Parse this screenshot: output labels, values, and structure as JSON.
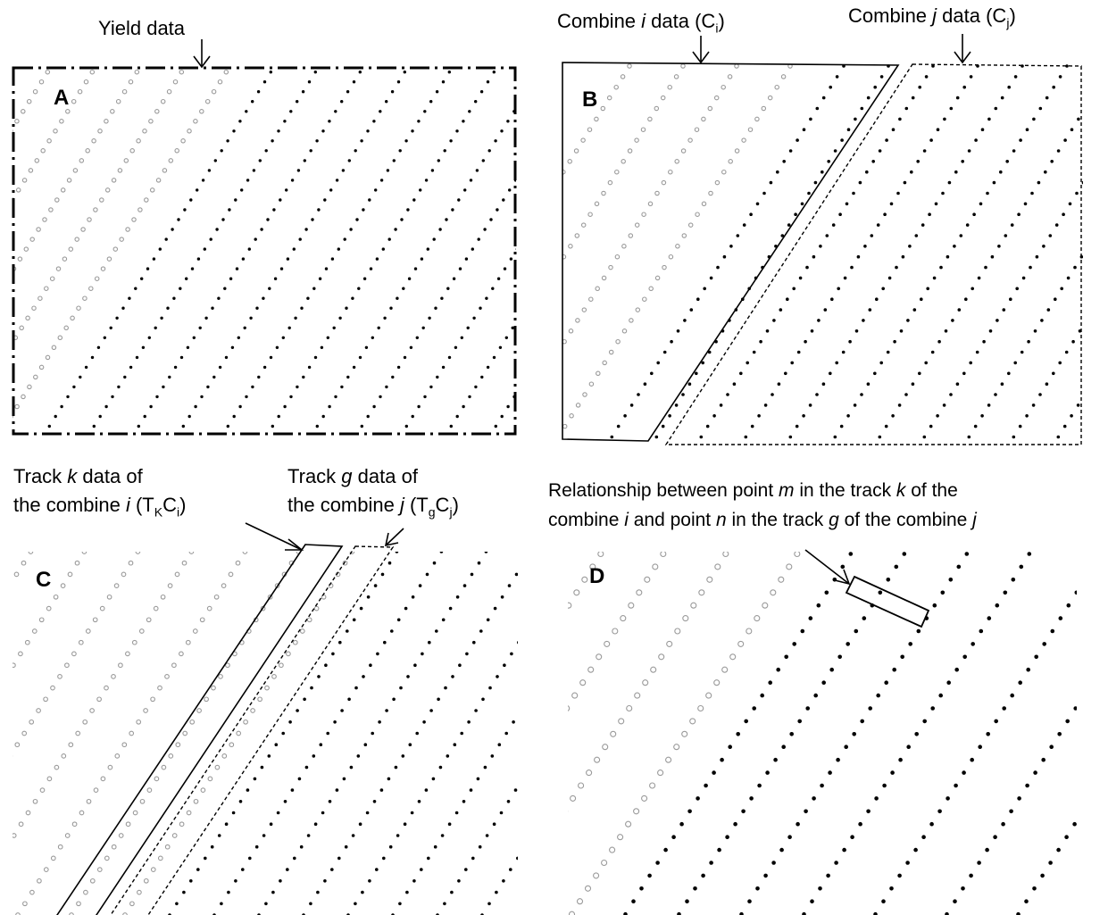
{
  "panels": {
    "a": {
      "letter": "A",
      "title": "Yield data"
    },
    "b": {
      "letter": "B",
      "combine_i": {
        "text": "Combine ",
        "var": "i",
        "tail": " data (C",
        "sub": "i",
        "end": ")"
      },
      "combine_j": {
        "text": "Combine ",
        "var": "j",
        "tail": " data (C",
        "sub": "j",
        "end": ")"
      }
    },
    "c": {
      "letter": "C",
      "track_k": {
        "line1_a": "Track ",
        "line1_var": "k",
        "line1_b": " data of",
        "line2_a": "the combine ",
        "line2_var": "i",
        "line2_b": " (T",
        "line2_sub1": "K",
        "line2_c": "C",
        "line2_sub2": "i",
        "line2_d": ")"
      },
      "track_g": {
        "line1_a": "Track ",
        "line1_var": "g",
        "line1_b": " data of",
        "line2_a": "the combine ",
        "line2_var": "j",
        "line2_b": " (T",
        "line2_sub1": "g",
        "line2_c": "C",
        "line2_sub2": "j",
        "line2_d": ")"
      }
    },
    "d": {
      "letter": "D",
      "relation": {
        "l1_a": "Relationship between point ",
        "l1_m": "m",
        "l1_b": " in the track ",
        "l1_k": "k",
        "l1_c": " of the",
        "l2_a": "combine ",
        "l2_i": "i",
        "l2_b": " and point ",
        "l2_n": "n",
        "l2_c": " in the track ",
        "l2_g": "g",
        "l2_d": " of the combine ",
        "l2_j": "j"
      }
    }
  },
  "colors": {
    "ink": "#000000",
    "open_marker": "#9a9a9a",
    "filled_marker": "#000000"
  }
}
